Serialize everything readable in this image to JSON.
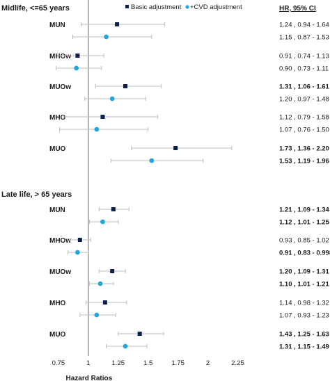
{
  "chart_data": {
    "type": "forest",
    "title": "",
    "xlabel": "Hazard Ratios",
    "ci_header": "HR, 95% CI",
    "xlim": [
      0.5,
      2.55
    ],
    "xticks": [
      "0.75",
      "1",
      "1.25",
      "1.5",
      "1.75",
      "2",
      "2.25"
    ],
    "reference_line": 1,
    "legend": [
      {
        "name": "Basic adjustment",
        "marker": "square",
        "color": "#0d1f4d"
      },
      {
        "name": "+CVD adjustment",
        "marker": "circle",
        "color": "#1fa6dc"
      }
    ],
    "sections": [
      {
        "title": "Midlife, <=65 years",
        "groups": [
          {
            "label": "MUN",
            "rows": [
              {
                "series": "Basic adjustment",
                "hr": 1.24,
                "lo": 0.94,
                "hi": 1.64,
                "text": "1.24 , 0.94 - 1.64",
                "bold": false
              },
              {
                "series": "+CVD adjustment",
                "hr": 1.15,
                "lo": 0.87,
                "hi": 1.53,
                "text": "1.15 , 0.87 - 1.53",
                "bold": false
              }
            ]
          },
          {
            "label": "MHOw",
            "rows": [
              {
                "series": "Basic adjustment",
                "hr": 0.91,
                "lo": 0.74,
                "hi": 1.13,
                "text": "0.91 , 0.74 - 1.13",
                "bold": false
              },
              {
                "series": "+CVD adjustment",
                "hr": 0.9,
                "lo": 0.73,
                "hi": 1.11,
                "text": "0.90 , 0.73 - 1.11",
                "bold": false
              }
            ]
          },
          {
            "label": "MUOw",
            "rows": [
              {
                "series": "Basic adjustment",
                "hr": 1.31,
                "lo": 1.06,
                "hi": 1.61,
                "text": "1.31 , 1.06 - 1.61",
                "bold": true
              },
              {
                "series": "+CVD adjustment",
                "hr": 1.2,
                "lo": 0.97,
                "hi": 1.48,
                "text": "1.20 , 0.97 - 1.48",
                "bold": false
              }
            ]
          },
          {
            "label": "MHO",
            "rows": [
              {
                "series": "Basic adjustment",
                "hr": 1.12,
                "lo": 0.79,
                "hi": 1.58,
                "text": "1.12 , 0.79 - 1.58",
                "bold": false
              },
              {
                "series": "+CVD adjustment",
                "hr": 1.07,
                "lo": 0.76,
                "hi": 1.5,
                "text": "1.07 , 0.76 - 1.50",
                "bold": false
              }
            ]
          },
          {
            "label": "MUO",
            "rows": [
              {
                "series": "Basic adjustment",
                "hr": 1.73,
                "lo": 1.36,
                "hi": 2.2,
                "text": "1.73 , 1.36 - 2.20",
                "bold": true
              },
              {
                "series": "+CVD adjustment",
                "hr": 1.53,
                "lo": 1.19,
                "hi": 1.96,
                "text": "1.53 , 1.19 - 1.96",
                "bold": true
              }
            ]
          }
        ]
      },
      {
        "title": "Late life, > 65 years",
        "groups": [
          {
            "label": "MUN",
            "rows": [
              {
                "series": "Basic adjustment",
                "hr": 1.21,
                "lo": 1.09,
                "hi": 1.34,
                "text": "1.21 , 1.09 - 1.34",
                "bold": true
              },
              {
                "series": "+CVD adjustment",
                "hr": 1.12,
                "lo": 1.01,
                "hi": 1.25,
                "text": "1.12 , 1.01 - 1.25",
                "bold": true
              }
            ]
          },
          {
            "label": "MHOw",
            "rows": [
              {
                "series": "Basic adjustment",
                "hr": 0.93,
                "lo": 0.85,
                "hi": 1.02,
                "text": "0.93 , 0.85 - 1.02",
                "bold": false
              },
              {
                "series": "+CVD adjustment",
                "hr": 0.91,
                "lo": 0.83,
                "hi": 0.998,
                "text": "0.91 , 0.83 - 0.998",
                "bold": true
              }
            ]
          },
          {
            "label": "MUOw",
            "rows": [
              {
                "series": "Basic adjustment",
                "hr": 1.2,
                "lo": 1.09,
                "hi": 1.31,
                "text": "1.20 , 1.09 - 1.31",
                "bold": true
              },
              {
                "series": "+CVD adjustment",
                "hr": 1.1,
                "lo": 1.01,
                "hi": 1.21,
                "text": "1.10 , 1.01 - 1.21",
                "bold": true
              }
            ]
          },
          {
            "label": "MHO",
            "rows": [
              {
                "series": "Basic adjustment",
                "hr": 1.14,
                "lo": 0.98,
                "hi": 1.32,
                "text": "1.14 , 0.98 - 1.32",
                "bold": false
              },
              {
                "series": "+CVD adjustment",
                "hr": 1.07,
                "lo": 0.93,
                "hi": 1.23,
                "text": "1.07 , 0.93 - 1.23",
                "bold": false
              }
            ]
          },
          {
            "label": "MUO",
            "rows": [
              {
                "series": "Basic adjustment",
                "hr": 1.43,
                "lo": 1.25,
                "hi": 1.63,
                "text": "1.43 , 1.25 - 1.63",
                "bold": true
              },
              {
                "series": "+CVD adjustment",
                "hr": 1.31,
                "lo": 1.15,
                "hi": 1.49,
                "text": "1.31 , 1.15 - 1.49",
                "bold": true
              }
            ]
          }
        ]
      }
    ],
    "colors": {
      "ci_line": "#bdbdbd",
      "reference": "#8a8a8a"
    }
  }
}
